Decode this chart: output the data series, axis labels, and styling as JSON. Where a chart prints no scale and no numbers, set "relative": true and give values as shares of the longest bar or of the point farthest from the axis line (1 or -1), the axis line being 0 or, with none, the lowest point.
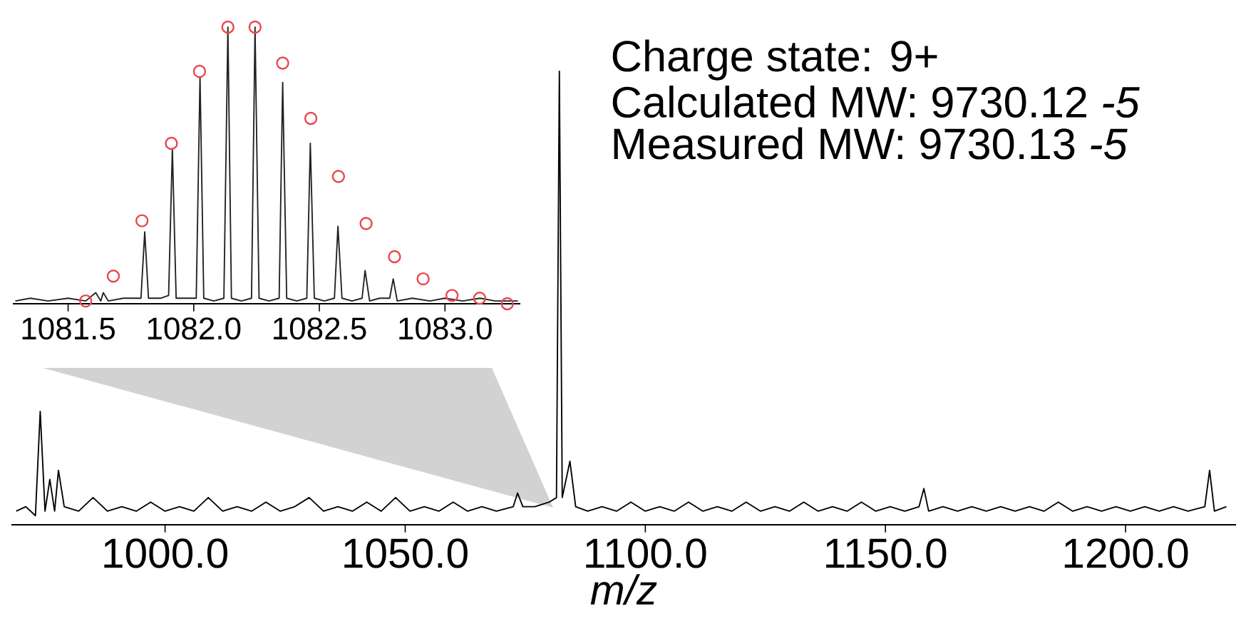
{
  "chart_data": [
    {
      "type": "line",
      "relative": true,
      "xlabel": "m/z",
      "xlim": [
        968,
        1223
      ],
      "xticks": [
        {
          "value": 1000,
          "label": "1000.0"
        },
        {
          "value": 1050,
          "label": "1050.0"
        },
        {
          "value": 1100,
          "label": "1100.0"
        },
        {
          "value": 1150,
          "label": "1150.0"
        },
        {
          "value": 1200,
          "label": "1200.0"
        }
      ],
      "annotations": [
        "Charge state: 9+",
        "Calculated MW: 9730.12 *-5*",
        "Measured MW: 9730.13 *-5*"
      ],
      "series": [
        {
          "color": "#000000",
          "x": [
            969,
            971,
            973,
            974,
            975,
            976,
            977,
            977.8,
            979,
            982,
            985,
            988,
            991,
            994,
            997,
            1000,
            1003,
            1006,
            1009,
            1012,
            1015,
            1018,
            1021,
            1024,
            1027,
            1030,
            1033,
            1036,
            1039,
            1042,
            1045,
            1048,
            1051,
            1054,
            1057,
            1060,
            1063,
            1066,
            1069,
            1072.5,
            1073.4,
            1074.5,
            1077,
            1080,
            1081.5,
            1082.1,
            1082.7,
            1084.3,
            1085.5,
            1088,
            1091,
            1094,
            1097,
            1100,
            1103,
            1106,
            1109,
            1112,
            1115,
            1118,
            1121,
            1124,
            1127,
            1130,
            1133,
            1136,
            1139,
            1142,
            1145,
            1148,
            1151,
            1154,
            1157,
            1158,
            1159,
            1162,
            1165,
            1168,
            1171,
            1174,
            1177,
            1180,
            1183,
            1186,
            1189,
            1192,
            1195,
            1198,
            1201,
            1204,
            1207,
            1210,
            1213,
            1216.5,
            1217.5,
            1218.5,
            1221
          ],
          "values": [
            0.03,
            0.04,
            0.02,
            0.25,
            0.03,
            0.1,
            0.03,
            0.12,
            0.04,
            0.03,
            0.06,
            0.03,
            0.04,
            0.03,
            0.05,
            0.03,
            0.04,
            0.03,
            0.06,
            0.03,
            0.04,
            0.03,
            0.05,
            0.03,
            0.04,
            0.06,
            0.03,
            0.04,
            0.03,
            0.05,
            0.03,
            0.06,
            0.03,
            0.04,
            0.03,
            0.05,
            0.03,
            0.04,
            0.03,
            0.04,
            0.07,
            0.04,
            0.04,
            0.05,
            0.06,
            1.0,
            0.06,
            0.14,
            0.04,
            0.03,
            0.04,
            0.03,
            0.05,
            0.03,
            0.04,
            0.03,
            0.05,
            0.03,
            0.04,
            0.03,
            0.05,
            0.03,
            0.04,
            0.03,
            0.05,
            0.03,
            0.04,
            0.03,
            0.05,
            0.03,
            0.04,
            0.03,
            0.04,
            0.08,
            0.03,
            0.04,
            0.03,
            0.04,
            0.03,
            0.04,
            0.03,
            0.04,
            0.03,
            0.05,
            0.03,
            0.04,
            0.03,
            0.04,
            0.03,
            0.04,
            0.03,
            0.04,
            0.03,
            0.04,
            0.12,
            0.03,
            0.04
          ]
        }
      ]
    },
    {
      "type": "line",
      "relative": true,
      "xlim": [
        1081.28,
        1083.3
      ],
      "xticks": [
        {
          "value": 1081.5,
          "label": "1081.5"
        },
        {
          "value": 1082.0,
          "label": "1082.0"
        },
        {
          "value": 1082.5,
          "label": "1082.5"
        },
        {
          "value": 1083.0,
          "label": "1083.0"
        }
      ],
      "series": [
        {
          "color": "#222222",
          "x": [
            1081.29,
            1081.35,
            1081.42,
            1081.5,
            1081.57,
            1081.61,
            1081.63,
            1081.64,
            1081.66,
            1081.72,
            1081.79,
            1081.805,
            1081.82,
            1081.87,
            1081.9,
            1081.915,
            1081.93,
            1081.97,
            1082.01,
            1082.025,
            1082.04,
            1082.08,
            1082.12,
            1082.136,
            1082.15,
            1082.19,
            1082.23,
            1082.244,
            1082.26,
            1082.3,
            1082.34,
            1082.354,
            1082.37,
            1082.41,
            1082.45,
            1082.464,
            1082.48,
            1082.52,
            1082.56,
            1082.574,
            1082.59,
            1082.63,
            1082.67,
            1082.682,
            1082.7,
            1082.74,
            1082.78,
            1082.794,
            1082.81,
            1082.87,
            1082.94,
            1083.0,
            1083.07,
            1083.14,
            1083.2,
            1083.29
          ],
          "values": [
            0.01,
            0.02,
            0.01,
            0.02,
            0.01,
            0.04,
            0.01,
            0.04,
            0.01,
            0.02,
            0.02,
            0.26,
            0.02,
            0.02,
            0.03,
            0.56,
            0.02,
            0.02,
            0.02,
            0.82,
            0.02,
            0.01,
            0.02,
            1.0,
            0.02,
            0.01,
            0.02,
            1.0,
            0.02,
            0.01,
            0.02,
            0.8,
            0.02,
            0.01,
            0.02,
            0.58,
            0.02,
            0.01,
            0.02,
            0.28,
            0.02,
            0.01,
            0.02,
            0.12,
            0.01,
            0.02,
            0.02,
            0.09,
            0.01,
            0.02,
            0.01,
            0.02,
            0.01,
            0.02,
            0.01,
            0.01
          ]
        },
        {
          "type": "scatter",
          "marker": "circle",
          "color": "#e8484c",
          "x": [
            1081.57,
            1081.68,
            1081.794,
            1081.911,
            1082.023,
            1082.136,
            1082.244,
            1082.354,
            1082.466,
            1082.576,
            1082.686,
            1082.799,
            1082.913,
            1083.028,
            1083.138,
            1083.248
          ],
          "values": [
            0.01,
            0.1,
            0.3,
            0.58,
            0.84,
            1.0,
            1.0,
            0.87,
            0.67,
            0.46,
            0.29,
            0.17,
            0.09,
            0.03,
            0.02,
            0.0
          ]
        }
      ]
    }
  ]
}
